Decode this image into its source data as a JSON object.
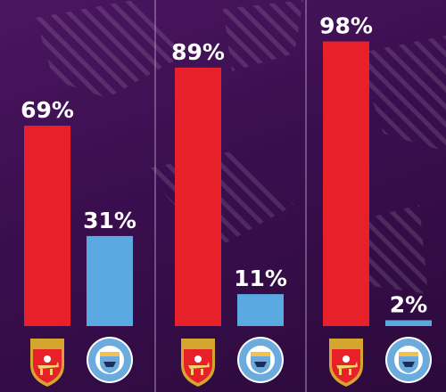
{
  "chart_data": {
    "type": "bar",
    "categories": [
      "",
      "",
      ""
    ],
    "series": [
      {
        "name": "Arsenal",
        "color": "#e8202a",
        "values": [
          69,
          89,
          98
        ],
        "labels": [
          "69%",
          "89%",
          "98%"
        ]
      },
      {
        "name": "Man City",
        "color": "#5aa9e0",
        "values": [
          31,
          11,
          2
        ],
        "labels": [
          "31%",
          "11%",
          "2%"
        ]
      }
    ],
    "ylim": [
      0,
      100
    ],
    "grid": false,
    "legend": "none",
    "group_labels": [
      "arsenal-crest-icon",
      "man-city-crest-icon"
    ],
    "colors": {
      "background": "#3a0f4a",
      "divider": "#b9a0c8"
    }
  },
  "crests": {
    "arsenal": {
      "icon": "arsenal-crest-icon"
    },
    "city": {
      "icon": "man-city-crest-icon"
    }
  }
}
